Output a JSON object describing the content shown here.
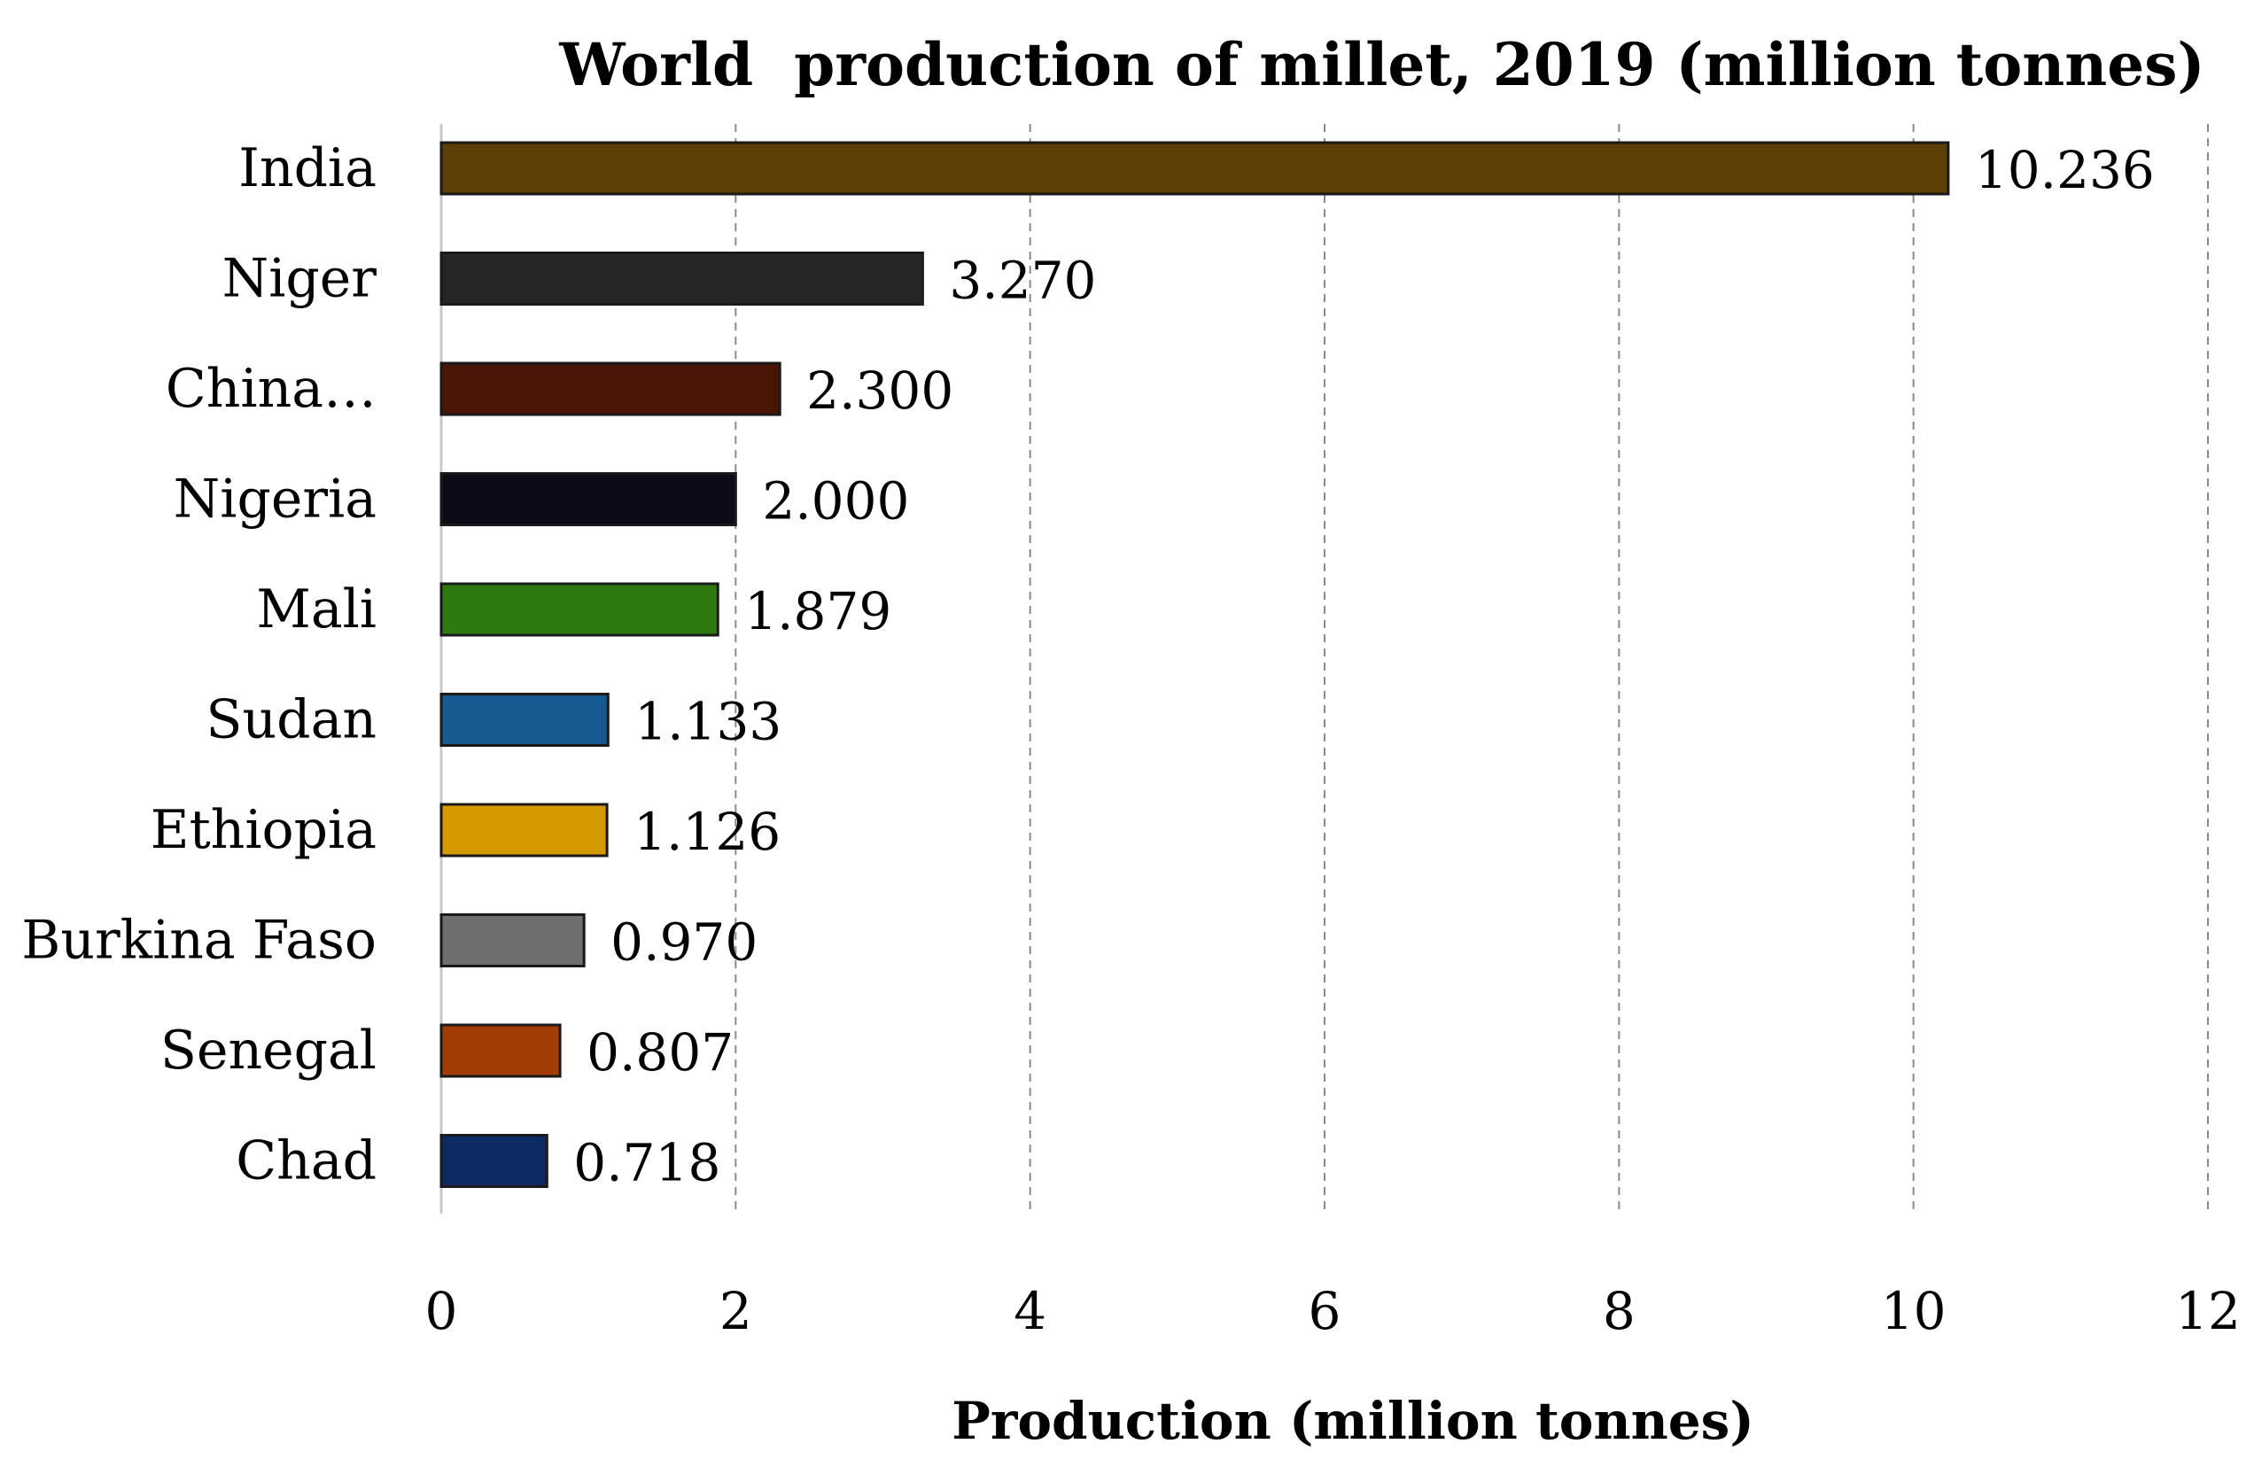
{
  "chart_data": {
    "type": "bar",
    "orientation": "horizontal",
    "title": "World  production of millet, 2019 (million tonnes)",
    "xlabel": "Production (million tonnes)",
    "ylabel": "",
    "xlim": [
      0,
      12
    ],
    "xticks": [
      0,
      2,
      4,
      6,
      8,
      10,
      12
    ],
    "grid": "vertical dashed",
    "legend": "none",
    "categories": [
      "India",
      "Niger",
      "China…",
      "Nigeria",
      "Mali",
      "Sudan",
      "Ethiopia",
      "Burkina Faso",
      "Senegal",
      "Chad"
    ],
    "values": [
      10.236,
      3.27,
      2.3,
      2.0,
      1.879,
      1.133,
      1.126,
      0.97,
      0.807,
      0.718
    ],
    "value_labels": [
      "10.236",
      "3.270",
      "2.300",
      "2.000",
      "1.879",
      "1.133",
      "1.126",
      "0.970",
      "0.807",
      "0.718"
    ],
    "colors": [
      "#5c3f05",
      "#262626",
      "#4a1505",
      "#0c0c18",
      "#2f7a10",
      "#14598f",
      "#d49a00",
      "#6e6e6e",
      "#a13c05",
      "#0d2a62"
    ]
  }
}
